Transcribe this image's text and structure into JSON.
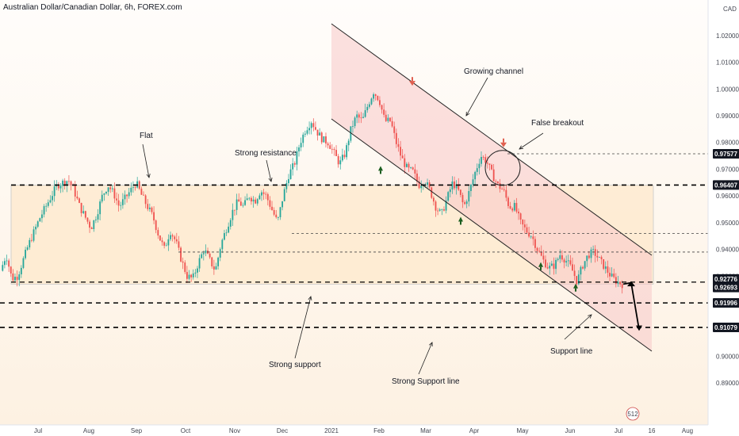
{
  "header": {
    "title": "Australian Dollar/Canadian Dollar, 6h, FOREX.com",
    "currency": "CAD"
  },
  "colors": {
    "up": "#26a69a",
    "down": "#ef5350",
    "channel_fill": "#f8c9c9",
    "flat_fill": "#fde3c0",
    "line": "#000000",
    "arrow_up": "#1b5e20",
    "arrow_down": "#e06050"
  },
  "chart_data": {
    "type": "candlestick",
    "ylim": [
      0.885,
      1.025
    ],
    "y_ticks": [
      1.02,
      1.01,
      1.0,
      0.99,
      0.98,
      0.97,
      0.96,
      0.95,
      0.94,
      0.93,
      0.9,
      0.89
    ],
    "x_ticks": [
      "Jul",
      "Aug",
      "Sep",
      "Oct",
      "Nov",
      "Dec",
      "2021",
      "Feb",
      "Mar",
      "Apr",
      "May",
      "Jun",
      "Jul",
      "16",
      "Aug"
    ],
    "price_path": [
      0.932,
      0.938,
      0.929,
      0.93,
      0.936,
      0.942,
      0.947,
      0.952,
      0.956,
      0.96,
      0.964,
      0.965,
      0.966,
      0.962,
      0.956,
      0.952,
      0.948,
      0.953,
      0.96,
      0.964,
      0.961,
      0.956,
      0.959,
      0.962,
      0.965,
      0.96,
      0.956,
      0.952,
      0.945,
      0.94,
      0.947,
      0.943,
      0.936,
      0.93,
      0.929,
      0.935,
      0.94,
      0.936,
      0.932,
      0.942,
      0.948,
      0.954,
      0.958,
      0.956,
      0.96,
      0.958,
      0.962,
      0.96,
      0.955,
      0.95,
      0.96,
      0.968,
      0.972,
      0.98,
      0.985,
      0.988,
      0.984,
      0.981,
      0.98,
      0.976,
      0.972,
      0.976,
      0.985,
      0.99,
      0.988,
      0.994,
      0.999,
      0.996,
      0.988,
      0.988,
      0.98,
      0.974,
      0.97,
      0.969,
      0.964,
      0.966,
      0.962,
      0.956,
      0.953,
      0.959,
      0.965,
      0.962,
      0.956,
      0.962,
      0.969,
      0.975,
      0.973,
      0.968,
      0.964,
      0.962,
      0.956,
      0.956,
      0.95,
      0.947,
      0.945,
      0.94,
      0.936,
      0.933,
      0.934,
      0.938,
      0.936,
      0.933,
      0.928,
      0.934,
      0.938,
      0.939,
      0.936,
      0.933,
      0.93,
      0.928,
      0.927
    ],
    "price_labels": [
      {
        "value": 0.97577,
        "text": "0.97577",
        "dark": true
      },
      {
        "value": 0.96407,
        "text": "0.96407",
        "dark": true
      },
      {
        "value": 0.92776,
        "text": "0.92776",
        "dark": true
      },
      {
        "value": 0.92693,
        "text": "0.92693",
        "dark": true
      },
      {
        "value": 0.91996,
        "text": "0.91996",
        "dark": true
      },
      {
        "value": 0.91079,
        "text": "0.91079",
        "dark": true
      }
    ],
    "annotations": [
      {
        "text": "Flat"
      },
      {
        "text": "Strong resistance"
      },
      {
        "text": "Growing channel"
      },
      {
        "text": "False breakout"
      },
      {
        "text": "Strong support"
      },
      {
        "text": "Strong Support line"
      },
      {
        "text": "Support line"
      }
    ],
    "badge": "512"
  }
}
